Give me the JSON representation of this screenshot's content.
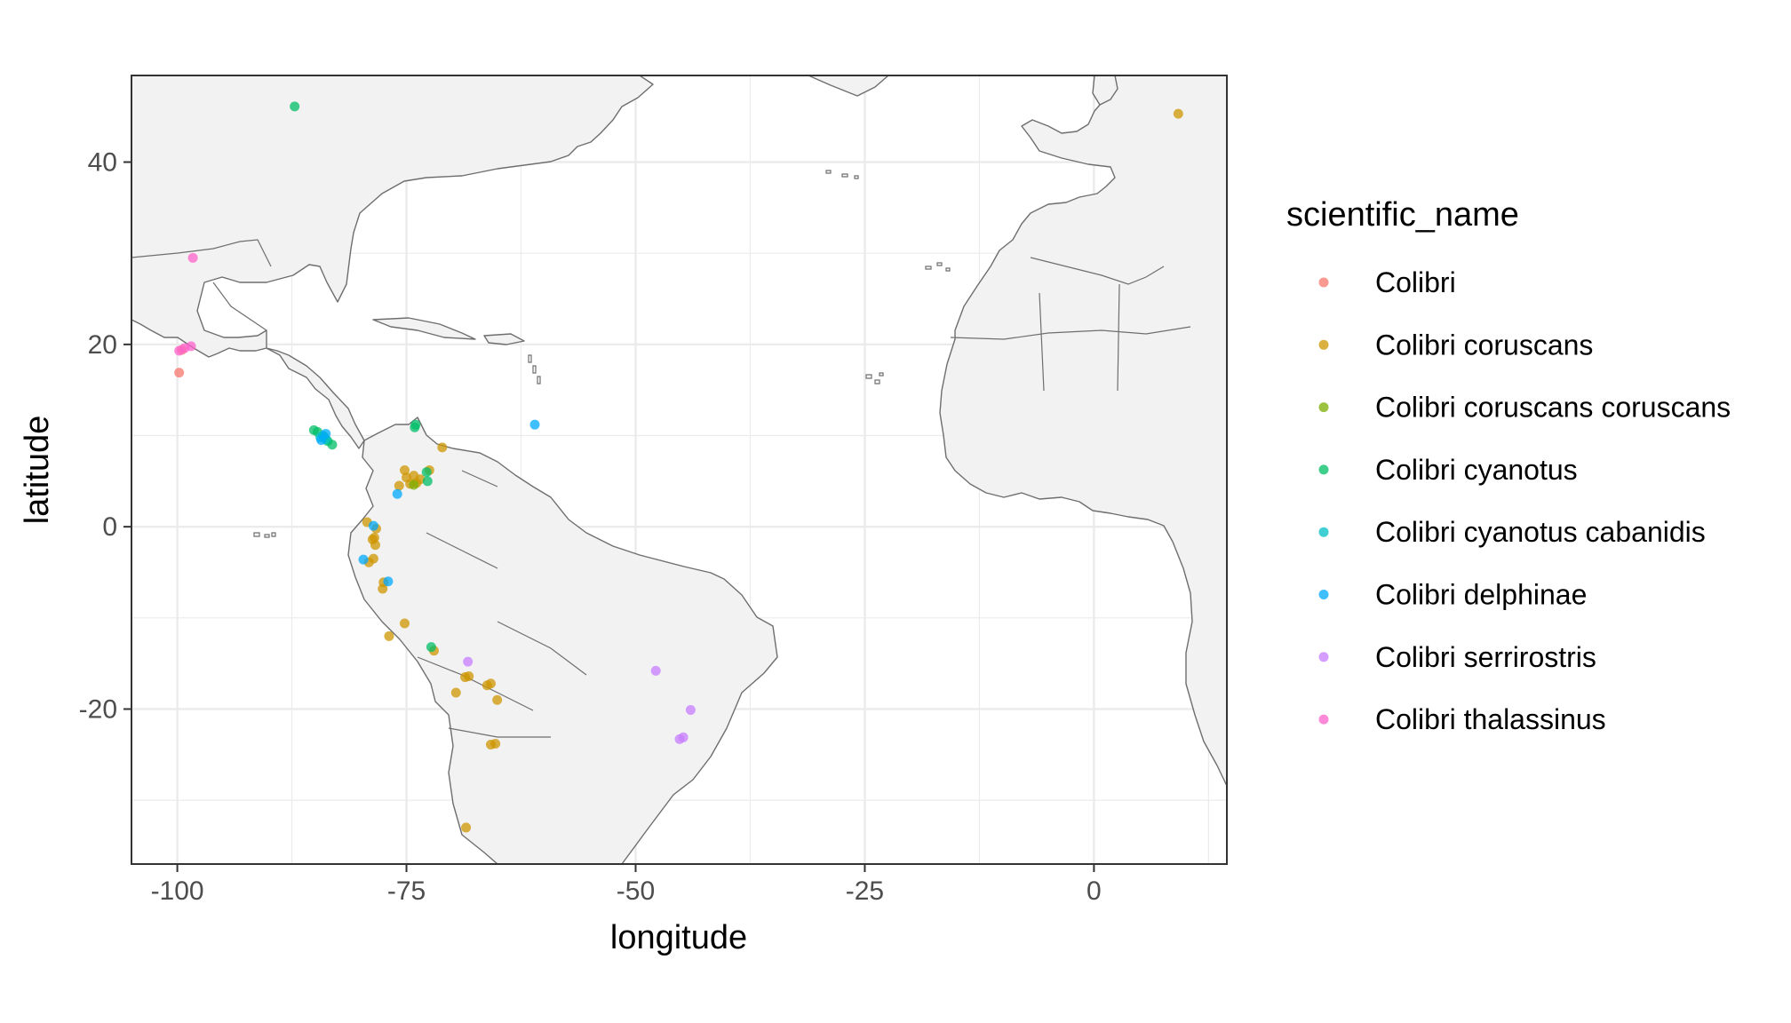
{
  "chart_data": {
    "type": "scatter",
    "xlabel": "longitude",
    "ylabel": "latitude",
    "xlim": [
      -105,
      14.5
    ],
    "ylim": [
      -37,
      49.5
    ],
    "x_ticks": [
      -100,
      -75,
      -50,
      -25,
      0
    ],
    "y_ticks": [
      40,
      20,
      0,
      -20
    ],
    "x_tick_labels": [
      "-100",
      "-75",
      "-50",
      "-25",
      "0"
    ],
    "y_tick_labels": [
      "40",
      "20",
      "0",
      "-20"
    ],
    "grid": true,
    "background": "world basemap",
    "legend": {
      "title": "scientific_name",
      "position": "right"
    },
    "series": [
      {
        "name": "Colibri",
        "color": "#F8766D",
        "points": [
          [
            -99.8,
            16.9
          ],
          [
            -99.5,
            19.4
          ]
        ]
      },
      {
        "name": "Colibri coruscans",
        "color": "#CD9600",
        "points": [
          [
            -71.1,
            8.7
          ],
          [
            -75.2,
            6.2
          ],
          [
            -75.0,
            5.4
          ],
          [
            -74.6,
            4.7
          ],
          [
            -73.9,
            4.8
          ],
          [
            -73.5,
            5.2
          ],
          [
            -74.2,
            5.6
          ],
          [
            -72.5,
            6.2
          ],
          [
            -75.8,
            4.5
          ],
          [
            -79.3,
            0.5
          ],
          [
            -78.3,
            -0.2
          ],
          [
            -78.5,
            -1.2
          ],
          [
            -78.7,
            -1.4
          ],
          [
            -78.4,
            -2.0
          ],
          [
            -79.1,
            -3.9
          ],
          [
            -78.6,
            -3.5
          ],
          [
            -77.5,
            -6.1
          ],
          [
            -77.6,
            -6.8
          ],
          [
            -76.9,
            -12.0
          ],
          [
            -75.2,
            -10.6
          ],
          [
            -72.0,
            -13.6
          ],
          [
            -68.6,
            -16.5
          ],
          [
            -68.2,
            -16.4
          ],
          [
            -66.2,
            -17.4
          ],
          [
            -65.1,
            -19.0
          ],
          [
            -65.3,
            -23.8
          ],
          [
            -65.8,
            -23.9
          ],
          [
            -65.8,
            -17.2
          ],
          [
            -69.6,
            -18.2
          ],
          [
            -68.5,
            -33.0
          ],
          [
            9.2,
            45.3
          ]
        ]
      },
      {
        "name": "Colibri coruscans coruscans",
        "color": "#7CAE00",
        "points": [
          [
            -84.0,
            9.9
          ],
          [
            -74.2,
            4.6
          ]
        ]
      },
      {
        "name": "Colibri cyanotus",
        "color": "#00BE67",
        "points": [
          [
            -87.2,
            46.1
          ],
          [
            -84.7,
            10.4
          ],
          [
            -85.1,
            10.6
          ],
          [
            -83.1,
            9.0
          ],
          [
            -83.6,
            9.4
          ],
          [
            -74.0,
            11.2
          ],
          [
            -74.1,
            10.9
          ],
          [
            -72.7,
            5.0
          ],
          [
            -72.8,
            6.0
          ],
          [
            -72.3,
            -13.2
          ]
        ]
      },
      {
        "name": "Colibri cyanotus cabanidis",
        "color": "#00BFC4",
        "points": [
          [
            -84.1,
            10.0
          ],
          [
            -83.8,
            9.6
          ],
          [
            -84.4,
            9.8
          ]
        ]
      },
      {
        "name": "Colibri delphinae",
        "color": "#00A9FF",
        "points": [
          [
            -83.8,
            10.2
          ],
          [
            -84.3,
            9.5
          ],
          [
            -61.0,
            11.2
          ],
          [
            -76.0,
            3.6
          ],
          [
            -78.6,
            0.1
          ],
          [
            -79.7,
            -3.6
          ],
          [
            -77.0,
            -6.0
          ]
        ]
      },
      {
        "name": "Colibri serrirostris",
        "color": "#C77CFF",
        "points": [
          [
            -68.3,
            -14.8
          ],
          [
            -47.8,
            -15.8
          ],
          [
            -44.0,
            -20.1
          ],
          [
            -44.8,
            -23.1
          ],
          [
            -45.2,
            -23.3
          ]
        ]
      },
      {
        "name": "Colibri thalassinus",
        "color": "#FF61CC",
        "points": [
          [
            -98.3,
            29.5
          ],
          [
            -99.8,
            19.3
          ],
          [
            -99.2,
            19.6
          ],
          [
            -98.5,
            19.8
          ]
        ]
      }
    ]
  }
}
